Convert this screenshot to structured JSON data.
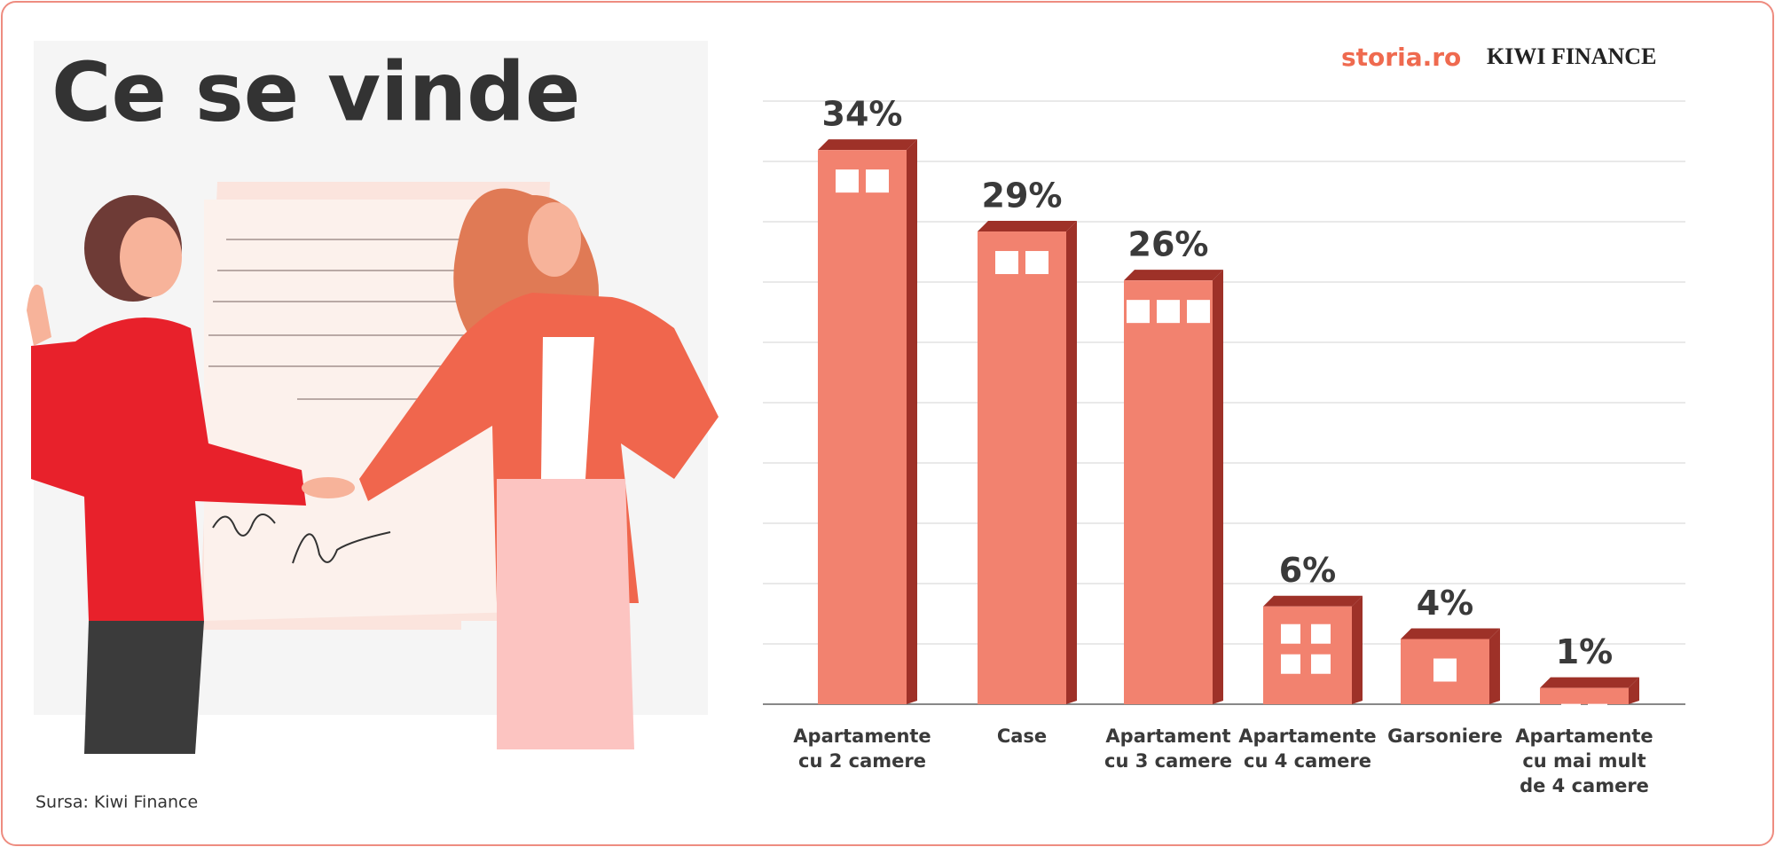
{
  "header": {
    "title": "Ce se vinde",
    "source": "Sursa: Kiwi Finance",
    "logo_left": "storia.ro",
    "logo_right": "KIWI FINANCE"
  },
  "chart_data": {
    "type": "bar",
    "categories": [
      "Apartamente cu 2 camere",
      "Case",
      "Apartament cu 3 camere",
      "Apartamente cu 4 camere",
      "Garsoniere",
      "Apartamente cu mai mult de 4 camere"
    ],
    "values": [
      34,
      29,
      26,
      6,
      4,
      1
    ],
    "value_labels": [
      "34%",
      "29%",
      "26%",
      "6%",
      "4%",
      "1%"
    ],
    "color": "#f2826f",
    "ylim": [
      0,
      37
    ],
    "grid": true
  }
}
